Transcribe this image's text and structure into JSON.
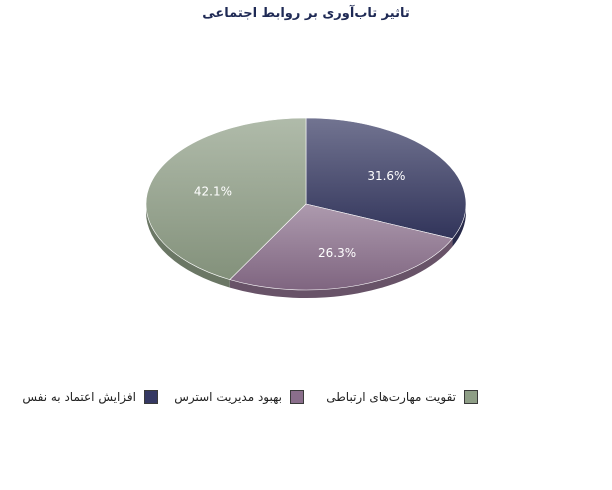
{
  "chart_data": {
    "type": "pie",
    "title": "تاثیر تاب‌آوری بر روابط اجتماعی",
    "slices": [
      {
        "label": "افزایش اعتماد به نفس",
        "value": 31.6,
        "value_label": "31.6%",
        "color": "#353862"
      },
      {
        "label": "بهبود مدیریت استرس",
        "value": 26.3,
        "value_label": "26.3%",
        "color": "#8a6e8b"
      },
      {
        "label": "تقویت مهارت‌های  ارتباطی",
        "value": 42.1,
        "value_label": "42.1%",
        "color": "#8e9e86"
      }
    ],
    "legend_position": "bottom"
  }
}
